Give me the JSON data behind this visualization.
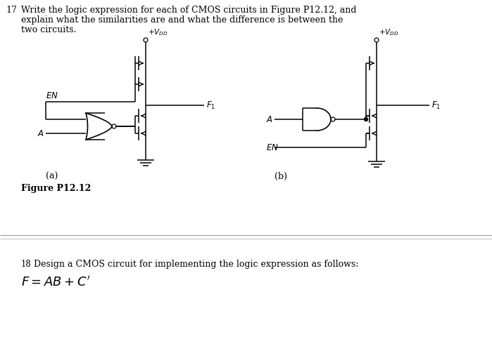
{
  "background_color": "#ffffff",
  "separator_color": "#cccccc",
  "text_color": "#000000",
  "title_num": "17",
  "title_text_line1": "Write the logic expression for each of CMOS circuits in Figure P12.12, and",
  "title_text_line2": "explain what the similarities are and what the difference is between the",
  "title_text_line3": "two circuits.",
  "fig_label": "Figure P12.12",
  "sub_a": "(a)",
  "sub_b": "(b)",
  "bottom_num": "18",
  "bottom_text": "Design a CMOS circuit for implementing the logic expression as follows:",
  "bottom_formula": "$F = AB + C'$",
  "vdd_label": "$+V_{DD}$",
  "en_label": "$EN$",
  "a_label": "$A$",
  "f1_label": "$F_1$"
}
